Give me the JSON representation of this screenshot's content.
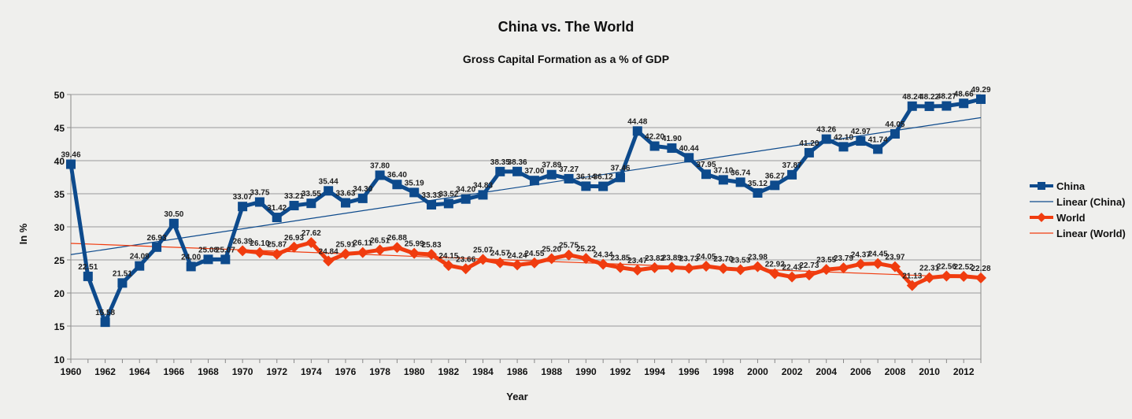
{
  "chart_data": {
    "type": "line",
    "title": "China vs. The World",
    "subtitle": "Gross Capital Formation as a % of GDP",
    "xlabel": "Year",
    "ylabel": "In %",
    "xlim": [
      1960,
      2013
    ],
    "ylim": [
      10,
      50
    ],
    "y_ticks": [
      10,
      15,
      20,
      25,
      30,
      35,
      40,
      45,
      50
    ],
    "x_tick_labels": [
      "1960",
      "1962",
      "1964",
      "1966",
      "1968",
      "1970",
      "1972",
      "1974",
      "1976",
      "1978",
      "1980",
      "1982",
      "1984",
      "1986",
      "1988",
      "1990",
      "1992",
      "1994",
      "1996",
      "1998",
      "2000",
      "2002",
      "2004",
      "2006",
      "2008",
      "2010",
      "2012"
    ],
    "grid": true,
    "legend_position": "right",
    "series": [
      {
        "name": "China",
        "color": "#0d4a8c",
        "marker": "square",
        "x": [
          1960,
          1961,
          1962,
          1963,
          1964,
          1965,
          1966,
          1967,
          1968,
          1969,
          1970,
          1971,
          1972,
          1973,
          1974,
          1975,
          1976,
          1977,
          1978,
          1979,
          1980,
          1981,
          1982,
          1983,
          1984,
          1985,
          1986,
          1987,
          1988,
          1989,
          1990,
          1991,
          1992,
          1993,
          1994,
          1995,
          1996,
          1997,
          1998,
          1999,
          2000,
          2001,
          2002,
          2003,
          2004,
          2005,
          2006,
          2007,
          2008,
          2009,
          2010,
          2011,
          2012,
          2013
        ],
        "values": [
          39.46,
          22.51,
          15.58,
          21.51,
          24.09,
          26.93,
          30.5,
          24.0,
          25.08,
          25.07,
          33.07,
          33.75,
          31.42,
          33.21,
          33.55,
          35.44,
          33.63,
          34.3,
          37.8,
          36.4,
          35.19,
          33.33,
          33.52,
          34.2,
          34.83,
          38.35,
          38.36,
          37.0,
          37.89,
          37.27,
          36.14,
          36.12,
          37.46,
          44.48,
          42.2,
          41.9,
          40.44,
          37.95,
          37.1,
          36.74,
          35.12,
          36.27,
          37.87,
          41.2,
          43.26,
          42.1,
          42.97,
          41.74,
          44.05,
          48.24,
          48.22,
          48.27,
          48.66,
          49.29
        ],
        "labels": [
          "39.46",
          "22.51",
          "15.58",
          "21.51",
          "24.09",
          "26.93",
          "30.50",
          "24.00",
          "25.08",
          "25.07",
          "33.07",
          "33.75",
          "31.42",
          "33.21",
          "33.55",
          "35.44",
          "33.63",
          "34.30",
          "37.80",
          "36.40",
          "35.19",
          "33.33",
          "33.52",
          "34.20",
          "34.83",
          "38.35",
          "38.36",
          "37.00",
          "37.89",
          "37.27",
          "36.14",
          "36.12",
          "37.46",
          "44.48",
          "42.20",
          "41.90",
          "40.44",
          "37.95",
          "37.10",
          "36.74",
          "35.12",
          "36.27",
          "37.87",
          "41.20",
          "43.26",
          "42.10",
          "42.97",
          "41.74",
          "44.05",
          "48.24",
          "48.22",
          "48.27",
          "48.66",
          "49.29"
        ]
      },
      {
        "name": "World",
        "color": "#f03c0f",
        "marker": "diamond",
        "x": [
          1970,
          1971,
          1972,
          1973,
          1974,
          1975,
          1976,
          1977,
          1978,
          1979,
          1980,
          1981,
          1982,
          1983,
          1984,
          1985,
          1986,
          1987,
          1988,
          1989,
          1990,
          1991,
          1992,
          1993,
          1994,
          1995,
          1996,
          1997,
          1998,
          1999,
          2000,
          2001,
          2002,
          2003,
          2004,
          2005,
          2006,
          2007,
          2008,
          2009,
          2010,
          2011,
          2012,
          2013
        ],
        "values": [
          26.39,
          26.1,
          25.87,
          26.93,
          27.62,
          24.84,
          25.91,
          26.11,
          26.51,
          26.88,
          25.99,
          25.83,
          24.15,
          23.66,
          25.07,
          24.57,
          24.24,
          24.55,
          25.2,
          25.75,
          25.22,
          24.34,
          23.85,
          23.47,
          23.82,
          23.89,
          23.73,
          24.05,
          23.7,
          23.53,
          23.98,
          22.92,
          22.43,
          22.73,
          23.55,
          23.79,
          24.37,
          24.45,
          23.97,
          21.13,
          22.31,
          22.56,
          22.52,
          22.28
        ],
        "labels": [
          "26.39",
          "26.10",
          "25.87",
          "26.93",
          "27.62",
          "24.84",
          "25.91",
          "26.11",
          "26.51",
          "26.88",
          "25.99",
          "25.83",
          "24.15",
          "23.66",
          "25.07",
          "24.57",
          "24.24",
          "24.55",
          "25.20",
          "25.75",
          "25.22",
          "24.34",
          "23.85",
          "23.47",
          "23.82",
          "23.89",
          "23.73",
          "24.05",
          "23.70",
          "23.53",
          "23.98",
          "22.92",
          "22.43",
          "22.73",
          "23.55",
          "23.79",
          "24.37",
          "24.45",
          "23.97",
          "21.13",
          "22.31",
          "22.56",
          "22.52",
          "22.28"
        ]
      },
      {
        "name": "Linear (China)",
        "color": "#0d4a8c",
        "type": "trendline",
        "x": [
          1960,
          2013
        ],
        "values": [
          25.8,
          46.5
        ]
      },
      {
        "name": "Linear (World)",
        "color": "#f03c0f",
        "type": "trendline",
        "x": [
          1960,
          2013
        ],
        "values": [
          27.5,
          22.3
        ]
      }
    ]
  }
}
